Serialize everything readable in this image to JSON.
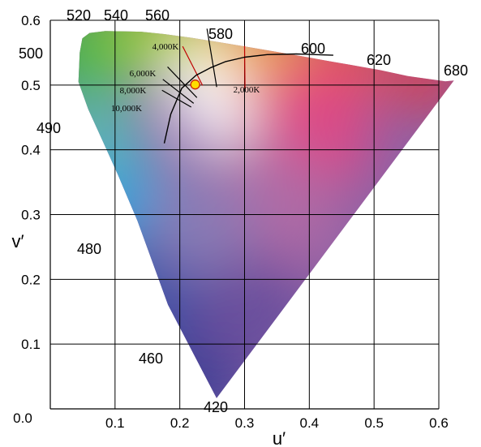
{
  "chart_data": {
    "type": "scatter",
    "title": "",
    "xlabel": "u′",
    "ylabel": "v′",
    "xlim": [
      0,
      0.6
    ],
    "ylim": [
      0,
      0.6
    ],
    "grid": true,
    "x_ticks": [
      {
        "value": 0.0,
        "label": "0.0"
      },
      {
        "value": 0.1,
        "label": "0.1"
      },
      {
        "value": 0.2,
        "label": "0.2"
      },
      {
        "value": 0.3,
        "label": "0.3"
      },
      {
        "value": 0.4,
        "label": "0.4"
      },
      {
        "value": 0.5,
        "label": "0.5"
      },
      {
        "value": 0.6,
        "label": "0.6"
      }
    ],
    "y_ticks": [
      {
        "value": 0.1,
        "label": "0.1"
      },
      {
        "value": 0.2,
        "label": "0.2"
      },
      {
        "value": 0.3,
        "label": "0.3"
      },
      {
        "value": 0.4,
        "label": "0.4"
      },
      {
        "value": 0.5,
        "label": "0.5"
      },
      {
        "value": 0.6,
        "label": "0.6"
      }
    ],
    "spectral_locus": [
      [
        0.2568,
        0.0165
      ],
      [
        0.1817,
        0.1607
      ],
      [
        0.1345,
        0.2905
      ],
      [
        0.1047,
        0.3607
      ],
      [
        0.0814,
        0.4123
      ],
      [
        0.0586,
        0.4625
      ],
      [
        0.0435,
        0.5049
      ],
      [
        0.0455,
        0.5503
      ],
      [
        0.0495,
        0.5722
      ],
      [
        0.0606,
        0.5805
      ],
      [
        0.0846,
        0.5834
      ],
      [
        0.1127,
        0.583
      ],
      [
        0.1405,
        0.5824
      ],
      [
        0.1759,
        0.5787
      ],
      [
        0.2184,
        0.573
      ],
      [
        0.2607,
        0.5662
      ],
      [
        0.3004,
        0.5597
      ],
      [
        0.3371,
        0.5534
      ],
      [
        0.3692,
        0.5479
      ],
      [
        0.3967,
        0.543
      ],
      [
        0.419,
        0.539
      ],
      [
        0.4367,
        0.5359
      ],
      [
        0.4623,
        0.5313
      ],
      [
        0.4868,
        0.527
      ],
      [
        0.5099,
        0.523
      ],
      [
        0.552,
        0.5139
      ],
      [
        0.6102,
        0.5058
      ],
      [
        0.6233,
        0.5071
      ]
    ],
    "wavelength_labels": [
      {
        "nm": "420",
        "u": 0.2568,
        "v": 0.0165
      },
      {
        "nm": "460",
        "u": 0.1817,
        "v": 0.1607
      },
      {
        "nm": "480",
        "u": 0.1047,
        "v": 0.3607
      },
      {
        "nm": "490",
        "u": 0.0586,
        "v": 0.4625
      },
      {
        "nm": "500",
        "u": 0.0435,
        "v": 0.5049
      },
      {
        "nm": "520",
        "u": 0.0846,
        "v": 0.5834
      },
      {
        "nm": "540",
        "u": 0.1127,
        "v": 0.583
      },
      {
        "nm": "560",
        "u": 0.1759,
        "v": 0.5787
      },
      {
        "nm": "580",
        "u": 0.2607,
        "v": 0.5662
      },
      {
        "nm": "600",
        "u": 0.3967,
        "v": 0.543
      },
      {
        "nm": "620",
        "u": 0.4868,
        "v": 0.527
      },
      {
        "nm": "680",
        "u": 0.6233,
        "v": 0.5071
      }
    ],
    "planckian_locus": [
      [
        0.176,
        0.41
      ],
      [
        0.186,
        0.455
      ],
      [
        0.203,
        0.495
      ],
      [
        0.225,
        0.515
      ],
      [
        0.248,
        0.527
      ],
      [
        0.27,
        0.536
      ],
      [
        0.3,
        0.543
      ],
      [
        0.335,
        0.547
      ],
      [
        0.38,
        0.548
      ],
      [
        0.437,
        0.546
      ]
    ],
    "isotherm_labels": [
      {
        "label": "2,000K",
        "u": 0.304,
        "v": 0.505
      },
      {
        "label": "4,000K",
        "u": 0.242,
        "v": 0.573
      },
      {
        "label": "6,000K",
        "u": 0.213,
        "v": 0.527
      },
      {
        "label": "8,000K",
        "u": 0.205,
        "v": 0.502
      },
      {
        "label": "10,000K",
        "u": 0.199,
        "v": 0.477
      }
    ],
    "isotherms": [
      {
        "cct": "2,000K",
        "from": [
          0.3007,
          0.4939
        ],
        "to": [
          0.3,
          0.5606
        ]
      },
      {
        "cct": "4,000K",
        "from": [
          0.2352,
          0.4993
        ],
        "to": [
          0.2044,
          0.5598
        ]
      },
      {
        "cct": "6,000K",
        "from": [
          0.2264,
          0.4806
        ],
        "to": [
          0.1811,
          0.5281
        ]
      },
      {
        "cct": "8,000K",
        "from": [
          0.2214,
          0.4718
        ],
        "to": [
          0.1738,
          0.5088
        ]
      },
      {
        "cct": "10,000K",
        "from": [
          0.2176,
          0.466
        ],
        "to": [
          0.1725,
          0.492
        ]
      }
    ],
    "curve_580": {
      "from": [
        0.242,
        0.587
      ],
      "to": [
        0.257,
        0.497
      ]
    },
    "white_point": {
      "u": 0.2238,
      "v": 0.5008
    },
    "colors": {
      "point_fill": "#ffdd00",
      "point_stroke": "#cc2200",
      "isotherm_warm": "#c00000",
      "isotherm_cool": "#000000"
    }
  }
}
